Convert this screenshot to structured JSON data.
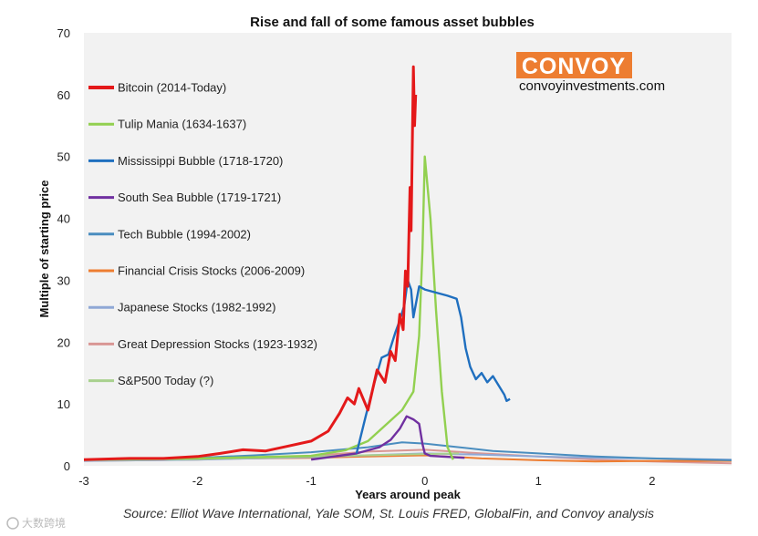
{
  "chart_data": {
    "type": "line",
    "title": "Rise and fall of some famous asset bubbles",
    "xlabel": "Years around peak",
    "ylabel": "Multiple of starting price",
    "xlim": [
      -3,
      2.7
    ],
    "ylim": [
      0,
      70
    ],
    "x_ticks": [
      -3,
      -2,
      -1,
      0,
      1,
      2
    ],
    "y_ticks": [
      0,
      10,
      20,
      30,
      40,
      50,
      60,
      70
    ],
    "grid": false,
    "legend_position": "left",
    "series": [
      {
        "name": "Bitcoin (2014-Today)",
        "color": "#e4191a",
        "points": [
          [
            -3,
            1.0
          ],
          [
            -2.6,
            1.2
          ],
          [
            -2.3,
            1.2
          ],
          [
            -2.0,
            1.5
          ],
          [
            -1.8,
            2.0
          ],
          [
            -1.6,
            2.6
          ],
          [
            -1.4,
            2.4
          ],
          [
            -1.2,
            3.2
          ],
          [
            -1.0,
            4.0
          ],
          [
            -0.85,
            5.6
          ],
          [
            -0.75,
            8.5
          ],
          [
            -0.68,
            11.0
          ],
          [
            -0.62,
            10.0
          ],
          [
            -0.58,
            12.5
          ],
          [
            -0.5,
            9.0
          ],
          [
            -0.42,
            15.5
          ],
          [
            -0.35,
            13.5
          ],
          [
            -0.3,
            18.5
          ],
          [
            -0.26,
            17.0
          ],
          [
            -0.22,
            24.5
          ],
          [
            -0.19,
            22.0
          ],
          [
            -0.17,
            31.5
          ],
          [
            -0.15,
            29.0
          ],
          [
            -0.13,
            45.0
          ],
          [
            -0.12,
            38.0
          ],
          [
            -0.1,
            64.5
          ],
          [
            -0.09,
            55.0
          ],
          [
            -0.08,
            60.0
          ]
        ]
      },
      {
        "name": "Tulip Mania (1634-1637)",
        "color": "#92d050",
        "points": [
          [
            -3,
            1.0
          ],
          [
            -2.0,
            1.2
          ],
          [
            -1.0,
            1.6
          ],
          [
            -0.7,
            2.5
          ],
          [
            -0.5,
            4.0
          ],
          [
            -0.35,
            6.5
          ],
          [
            -0.2,
            9.0
          ],
          [
            -0.1,
            12.0
          ],
          [
            -0.05,
            21.0
          ],
          [
            -0.02,
            35.0
          ],
          [
            0.0,
            50.0
          ],
          [
            0.05,
            40.0
          ],
          [
            0.1,
            25.0
          ],
          [
            0.15,
            12.0
          ],
          [
            0.2,
            3.0
          ],
          [
            0.25,
            1.0
          ]
        ]
      },
      {
        "name": "Mississippi Bubble (1718-1720)",
        "color": "#1f6fbf",
        "points": [
          [
            -0.6,
            2.0
          ],
          [
            -0.52,
            8.0
          ],
          [
            -0.45,
            13.0
          ],
          [
            -0.38,
            17.5
          ],
          [
            -0.32,
            18.0
          ],
          [
            -0.26,
            21.5
          ],
          [
            -0.22,
            23.5
          ],
          [
            -0.18,
            26.0
          ],
          [
            -0.15,
            30.0
          ],
          [
            -0.12,
            28.5
          ],
          [
            -0.1,
            24.0
          ],
          [
            -0.05,
            29.0
          ],
          [
            0.0,
            28.5
          ],
          [
            0.1,
            28.0
          ],
          [
            0.2,
            27.5
          ],
          [
            0.28,
            27.0
          ],
          [
            0.32,
            24.0
          ],
          [
            0.36,
            19.0
          ],
          [
            0.4,
            16.0
          ],
          [
            0.45,
            14.0
          ],
          [
            0.5,
            15.0
          ],
          [
            0.55,
            13.5
          ],
          [
            0.6,
            14.5
          ],
          [
            0.65,
            13.0
          ],
          [
            0.7,
            11.5
          ],
          [
            0.72,
            10.5
          ],
          [
            0.75,
            10.8
          ]
        ]
      },
      {
        "name": "South Sea Bubble (1719-1721)",
        "color": "#7030a0",
        "points": [
          [
            -1.0,
            1.0
          ],
          [
            -0.6,
            2.0
          ],
          [
            -0.4,
            3.0
          ],
          [
            -0.3,
            4.2
          ],
          [
            -0.22,
            6.0
          ],
          [
            -0.16,
            8.0
          ],
          [
            -0.1,
            7.5
          ],
          [
            -0.05,
            6.8
          ],
          [
            -0.02,
            3.5
          ],
          [
            0.0,
            2.0
          ],
          [
            0.05,
            1.6
          ],
          [
            0.15,
            1.5
          ],
          [
            0.35,
            1.3
          ]
        ]
      },
      {
        "name": "Tech Bubble (1994-2002)",
        "color": "#4a8dbf",
        "points": [
          [
            -3,
            1.0
          ],
          [
            -2.0,
            1.3
          ],
          [
            -1.5,
            1.7
          ],
          [
            -1.0,
            2.2
          ],
          [
            -0.5,
            3.0
          ],
          [
            -0.2,
            3.8
          ],
          [
            0.0,
            3.6
          ],
          [
            0.3,
            3.0
          ],
          [
            0.6,
            2.4
          ],
          [
            1.0,
            2.0
          ],
          [
            1.5,
            1.5
          ],
          [
            2.0,
            1.2
          ],
          [
            2.7,
            0.9
          ]
        ]
      },
      {
        "name": "Financial Crisis Stocks (2006-2009)",
        "color": "#ed7d31",
        "points": [
          [
            -3,
            1.0
          ],
          [
            -2.0,
            1.1
          ],
          [
            -1.0,
            1.3
          ],
          [
            -0.5,
            1.5
          ],
          [
            0.0,
            1.7
          ],
          [
            0.5,
            1.2
          ],
          [
            1.0,
            0.9
          ],
          [
            1.5,
            0.7
          ],
          [
            2.0,
            0.8
          ],
          [
            2.7,
            0.8
          ]
        ]
      },
      {
        "name": "Japanese Stocks (1982-1992)",
        "color": "#8fa8d6",
        "points": [
          [
            -3,
            0.8
          ],
          [
            -2.0,
            1.0
          ],
          [
            -1.0,
            1.4
          ],
          [
            0.0,
            2.0
          ],
          [
            0.5,
            1.8
          ],
          [
            1.0,
            1.5
          ],
          [
            1.5,
            1.3
          ],
          [
            2.0,
            1.2
          ],
          [
            2.7,
            1.0
          ]
        ]
      },
      {
        "name": "Great Depression Stocks (1923-1932)",
        "color": "#d99694",
        "points": [
          [
            -3,
            0.8
          ],
          [
            -2.0,
            1.0
          ],
          [
            -1.0,
            1.6
          ],
          [
            -0.5,
            2.3
          ],
          [
            0.0,
            2.6
          ],
          [
            0.5,
            2.0
          ],
          [
            1.0,
            1.5
          ],
          [
            1.5,
            1.0
          ],
          [
            2.0,
            0.7
          ],
          [
            2.7,
            0.4
          ]
        ]
      },
      {
        "name": "S&P500 Today (?)",
        "color": "#a9d18e",
        "points": [
          [
            -3,
            0.9
          ],
          [
            -2.0,
            1.1
          ],
          [
            -1.0,
            1.5
          ],
          [
            0.0,
            1.9
          ],
          [
            0.3,
            2.0
          ]
        ]
      }
    ]
  },
  "branding": {
    "name": "CONVOY",
    "url": "convoyinvestments.com",
    "accent": "#ed7d31"
  },
  "source": "Source: Elliot Wave International, Yale SOM, St. Louis FRED, GlobalFin, and Convoy analysis",
  "watermark": "大数跨境"
}
